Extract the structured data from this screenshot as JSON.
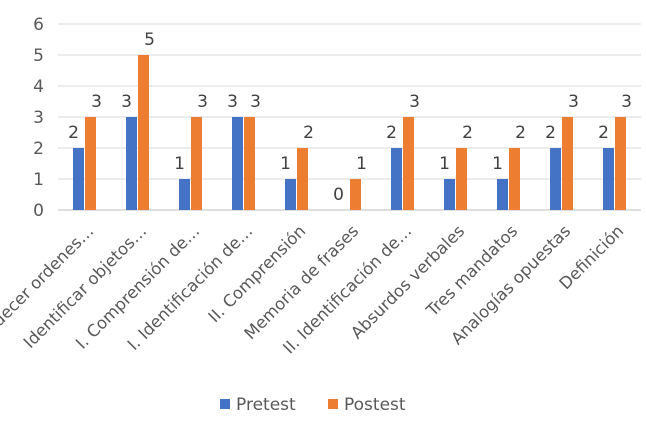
{
  "chart_data": {
    "type": "bar",
    "title": "",
    "xlabel": "",
    "ylabel": "",
    "ylim": [
      0,
      6
    ],
    "yticks": [
      0,
      1,
      2,
      3,
      4,
      5,
      6
    ],
    "grid": true,
    "legend_position": "bottom",
    "categories": [
      "Obedecer ordenes…",
      "Identificar objetos…",
      "I. Comprensión de…",
      "I. Identificación de…",
      "II. Comprensión",
      "Memoria de frases",
      "II. Identificación de…",
      "Absurdos verbales",
      "Tres mandatos",
      "Analogías opuestas",
      "Definición"
    ],
    "series": [
      {
        "name": "Pretest",
        "color": "#4472C4",
        "values": [
          2,
          3,
          1,
          3,
          1,
          0,
          2,
          1,
          1,
          2,
          2
        ],
        "labels": [
          "2",
          "3",
          "1",
          "3",
          "1",
          "0",
          "2",
          "1",
          "1",
          "2",
          "2"
        ]
      },
      {
        "name": "Postest",
        "color": "#ED7D31",
        "values": [
          3,
          5,
          3,
          3,
          2,
          1,
          3,
          2,
          2,
          3,
          3
        ],
        "labels": [
          "3",
          "5",
          "3",
          "3",
          "2",
          "1",
          "3",
          "2",
          "2",
          "3",
          "3"
        ]
      }
    ]
  }
}
